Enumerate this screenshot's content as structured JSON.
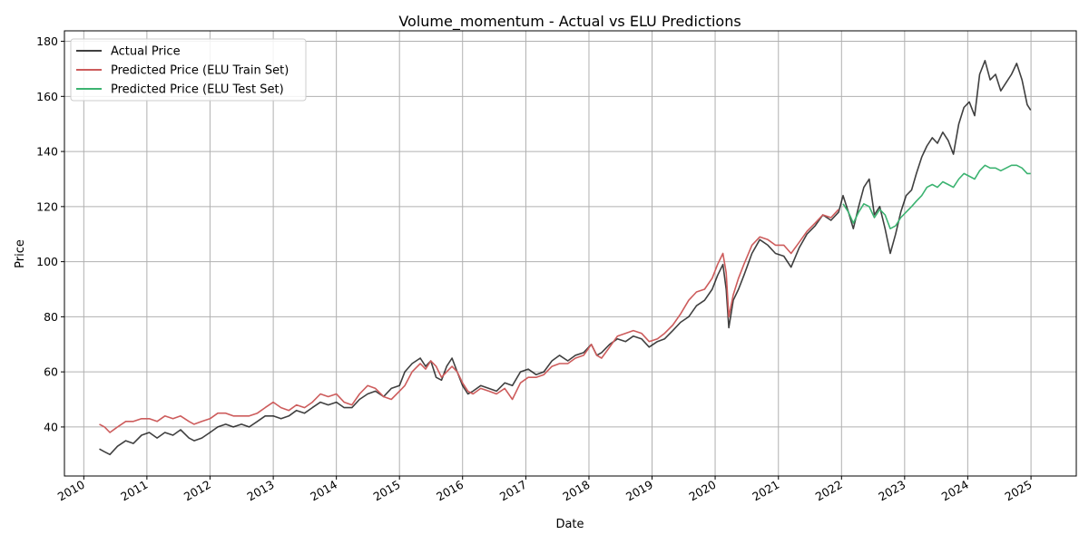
{
  "chart_data": {
    "type": "line",
    "title": "Volume_momentum - Actual vs ELU Predictions",
    "xlabel": "Date",
    "ylabel": "Price",
    "xlim": [
      "2009-09-11",
      "2025-09-20"
    ],
    "ylim": [
      22.2,
      183.8
    ],
    "grid": true,
    "legend_position": "top-left",
    "x_ticks": [
      "2010",
      "2011",
      "2012",
      "2013",
      "2014",
      "2015",
      "2016",
      "2017",
      "2018",
      "2019",
      "2020",
      "2021",
      "2022",
      "2023",
      "2024",
      "2025"
    ],
    "y_ticks": [
      40,
      60,
      80,
      100,
      120,
      140,
      160,
      180
    ],
    "series": [
      {
        "name": "Actual Price",
        "color": "#000000",
        "opacity": 0.75,
        "points": [
          [
            "2010-04-01",
            32
          ],
          [
            "2010-05-01",
            31
          ],
          [
            "2010-06-01",
            30
          ],
          [
            "2010-07-15",
            33
          ],
          [
            "2010-09-01",
            35
          ],
          [
            "2010-10-15",
            34
          ],
          [
            "2010-12-01",
            37
          ],
          [
            "2011-01-15",
            38
          ],
          [
            "2011-03-01",
            36
          ],
          [
            "2011-04-15",
            38
          ],
          [
            "2011-06-01",
            37
          ],
          [
            "2011-07-15",
            39
          ],
          [
            "2011-09-01",
            36
          ],
          [
            "2011-10-01",
            35
          ],
          [
            "2011-11-15",
            36
          ],
          [
            "2012-01-01",
            38
          ],
          [
            "2012-02-15",
            40
          ],
          [
            "2012-04-01",
            41
          ],
          [
            "2012-05-15",
            40
          ],
          [
            "2012-07-01",
            41
          ],
          [
            "2012-08-15",
            40
          ],
          [
            "2012-10-01",
            42
          ],
          [
            "2012-11-15",
            44
          ],
          [
            "2013-01-01",
            44
          ],
          [
            "2013-02-15",
            43
          ],
          [
            "2013-04-01",
            44
          ],
          [
            "2013-05-15",
            46
          ],
          [
            "2013-07-01",
            45
          ],
          [
            "2013-08-15",
            47
          ],
          [
            "2013-10-01",
            49
          ],
          [
            "2013-11-15",
            48
          ],
          [
            "2014-01-01",
            49
          ],
          [
            "2014-02-15",
            47
          ],
          [
            "2014-04-01",
            47
          ],
          [
            "2014-05-15",
            50
          ],
          [
            "2014-07-01",
            52
          ],
          [
            "2014-08-15",
            53
          ],
          [
            "2014-10-01",
            51
          ],
          [
            "2014-11-15",
            54
          ],
          [
            "2015-01-01",
            55
          ],
          [
            "2015-02-01",
            60
          ],
          [
            "2015-03-15",
            63
          ],
          [
            "2015-05-01",
            65
          ],
          [
            "2015-06-01",
            62
          ],
          [
            "2015-07-01",
            64
          ],
          [
            "2015-08-01",
            58
          ],
          [
            "2015-09-01",
            57
          ],
          [
            "2015-10-01",
            62
          ],
          [
            "2015-11-01",
            65
          ],
          [
            "2015-12-01",
            60
          ],
          [
            "2016-01-01",
            55
          ],
          [
            "2016-02-01",
            52
          ],
          [
            "2016-03-01",
            53
          ],
          [
            "2016-04-15",
            55
          ],
          [
            "2016-06-01",
            54
          ],
          [
            "2016-07-15",
            53
          ],
          [
            "2016-09-01",
            56
          ],
          [
            "2016-10-15",
            55
          ],
          [
            "2016-12-01",
            60
          ],
          [
            "2017-01-15",
            61
          ],
          [
            "2017-03-01",
            59
          ],
          [
            "2017-04-15",
            60
          ],
          [
            "2017-06-01",
            64
          ],
          [
            "2017-07-15",
            66
          ],
          [
            "2017-09-01",
            64
          ],
          [
            "2017-10-15",
            66
          ],
          [
            "2017-12-01",
            67
          ],
          [
            "2018-01-15",
            70
          ],
          [
            "2018-02-15",
            66
          ],
          [
            "2018-03-15",
            67
          ],
          [
            "2018-05-01",
            70
          ],
          [
            "2018-06-15",
            72
          ],
          [
            "2018-08-01",
            71
          ],
          [
            "2018-09-15",
            73
          ],
          [
            "2018-11-01",
            72
          ],
          [
            "2018-12-15",
            69
          ],
          [
            "2019-02-01",
            71
          ],
          [
            "2019-03-15",
            72
          ],
          [
            "2019-05-01",
            75
          ],
          [
            "2019-06-15",
            78
          ],
          [
            "2019-08-01",
            80
          ],
          [
            "2019-09-15",
            84
          ],
          [
            "2019-11-01",
            86
          ],
          [
            "2019-12-15",
            90
          ],
          [
            "2020-01-15",
            95
          ],
          [
            "2020-02-15",
            99
          ],
          [
            "2020-03-05",
            90
          ],
          [
            "2020-03-20",
            76
          ],
          [
            "2020-04-15",
            86
          ],
          [
            "2020-05-15",
            90
          ],
          [
            "2020-06-15",
            95
          ],
          [
            "2020-08-01",
            103
          ],
          [
            "2020-09-15",
            108
          ],
          [
            "2020-11-01",
            106
          ],
          [
            "2020-12-15",
            103
          ],
          [
            "2021-02-01",
            102
          ],
          [
            "2021-03-15",
            98
          ],
          [
            "2021-05-01",
            105
          ],
          [
            "2021-06-15",
            110
          ],
          [
            "2021-08-01",
            113
          ],
          [
            "2021-09-15",
            117
          ],
          [
            "2021-11-01",
            115
          ],
          [
            "2021-12-15",
            118
          ],
          [
            "2022-01-10",
            124
          ],
          [
            "2022-02-10",
            118
          ],
          [
            "2022-03-10",
            112
          ],
          [
            "2022-04-10",
            120
          ],
          [
            "2022-05-10",
            127
          ],
          [
            "2022-06-10",
            130
          ],
          [
            "2022-07-10",
            117
          ],
          [
            "2022-08-10",
            120
          ],
          [
            "2022-09-10",
            112
          ],
          [
            "2022-10-10",
            103
          ],
          [
            "2022-11-10",
            110
          ],
          [
            "2022-12-10",
            118
          ],
          [
            "2023-01-10",
            124
          ],
          [
            "2023-02-10",
            126
          ],
          [
            "2023-03-10",
            132
          ],
          [
            "2023-04-10",
            138
          ],
          [
            "2023-05-10",
            142
          ],
          [
            "2023-06-10",
            145
          ],
          [
            "2023-07-10",
            143
          ],
          [
            "2023-08-10",
            147
          ],
          [
            "2023-09-10",
            144
          ],
          [
            "2023-10-10",
            139
          ],
          [
            "2023-11-10",
            150
          ],
          [
            "2023-12-10",
            156
          ],
          [
            "2024-01-10",
            158
          ],
          [
            "2024-02-10",
            153
          ],
          [
            "2024-03-10",
            168
          ],
          [
            "2024-04-10",
            173
          ],
          [
            "2024-05-10",
            166
          ],
          [
            "2024-06-10",
            168
          ],
          [
            "2024-07-10",
            162
          ],
          [
            "2024-08-10",
            165
          ],
          [
            "2024-09-10",
            168
          ],
          [
            "2024-10-10",
            172
          ],
          [
            "2024-11-10",
            166
          ],
          [
            "2024-12-10",
            157
          ],
          [
            "2024-12-30",
            155
          ]
        ]
      },
      {
        "name": "Predicted Price (ELU Train Set)",
        "color": "#cd5c5c",
        "opacity": 1,
        "points": [
          [
            "2010-04-01",
            41
          ],
          [
            "2010-05-01",
            40
          ],
          [
            "2010-06-01",
            38
          ],
          [
            "2010-07-15",
            40
          ],
          [
            "2010-09-01",
            42
          ],
          [
            "2010-10-15",
            42
          ],
          [
            "2010-12-01",
            43
          ],
          [
            "2011-01-15",
            43
          ],
          [
            "2011-03-01",
            42
          ],
          [
            "2011-04-15",
            44
          ],
          [
            "2011-06-01",
            43
          ],
          [
            "2011-07-15",
            44
          ],
          [
            "2011-09-01",
            42
          ],
          [
            "2011-10-01",
            41
          ],
          [
            "2011-11-15",
            42
          ],
          [
            "2012-01-01",
            43
          ],
          [
            "2012-02-15",
            45
          ],
          [
            "2012-04-01",
            45
          ],
          [
            "2012-05-15",
            44
          ],
          [
            "2012-07-01",
            44
          ],
          [
            "2012-08-15",
            44
          ],
          [
            "2012-10-01",
            45
          ],
          [
            "2012-11-15",
            47
          ],
          [
            "2013-01-01",
            49
          ],
          [
            "2013-02-15",
            47
          ],
          [
            "2013-04-01",
            46
          ],
          [
            "2013-05-15",
            48
          ],
          [
            "2013-07-01",
            47
          ],
          [
            "2013-08-15",
            49
          ],
          [
            "2013-10-01",
            52
          ],
          [
            "2013-11-15",
            51
          ],
          [
            "2014-01-01",
            52
          ],
          [
            "2014-02-15",
            49
          ],
          [
            "2014-04-01",
            48
          ],
          [
            "2014-05-15",
            52
          ],
          [
            "2014-07-01",
            55
          ],
          [
            "2014-08-15",
            54
          ],
          [
            "2014-10-01",
            51
          ],
          [
            "2014-11-15",
            50
          ],
          [
            "2015-01-01",
            53
          ],
          [
            "2015-02-01",
            55
          ],
          [
            "2015-03-15",
            60
          ],
          [
            "2015-05-01",
            63
          ],
          [
            "2015-06-01",
            61
          ],
          [
            "2015-07-01",
            64
          ],
          [
            "2015-08-01",
            62
          ],
          [
            "2015-09-01",
            58
          ],
          [
            "2015-10-01",
            60
          ],
          [
            "2015-11-01",
            62
          ],
          [
            "2015-12-01",
            60
          ],
          [
            "2016-01-01",
            56
          ],
          [
            "2016-02-01",
            53
          ],
          [
            "2016-03-01",
            52
          ],
          [
            "2016-04-15",
            54
          ],
          [
            "2016-06-01",
            53
          ],
          [
            "2016-07-15",
            52
          ],
          [
            "2016-09-01",
            54
          ],
          [
            "2016-10-15",
            50
          ],
          [
            "2016-12-01",
            56
          ],
          [
            "2017-01-15",
            58
          ],
          [
            "2017-03-01",
            58
          ],
          [
            "2017-04-15",
            59
          ],
          [
            "2017-06-01",
            62
          ],
          [
            "2017-07-15",
            63
          ],
          [
            "2017-09-01",
            63
          ],
          [
            "2017-10-15",
            65
          ],
          [
            "2017-12-01",
            66
          ],
          [
            "2018-01-15",
            70
          ],
          [
            "2018-02-15",
            66
          ],
          [
            "2018-03-15",
            65
          ],
          [
            "2018-05-01",
            69
          ],
          [
            "2018-06-15",
            73
          ],
          [
            "2018-08-01",
            74
          ],
          [
            "2018-09-15",
            75
          ],
          [
            "2018-11-01",
            74
          ],
          [
            "2018-12-15",
            71
          ],
          [
            "2019-02-01",
            72
          ],
          [
            "2019-03-15",
            74
          ],
          [
            "2019-05-01",
            77
          ],
          [
            "2019-06-15",
            81
          ],
          [
            "2019-08-01",
            86
          ],
          [
            "2019-09-15",
            89
          ],
          [
            "2019-11-01",
            90
          ],
          [
            "2019-12-15",
            94
          ],
          [
            "2020-01-15",
            99
          ],
          [
            "2020-02-15",
            103
          ],
          [
            "2020-03-05",
            96
          ],
          [
            "2020-03-20",
            80
          ],
          [
            "2020-04-15",
            88
          ],
          [
            "2020-05-15",
            94
          ],
          [
            "2020-06-15",
            99
          ],
          [
            "2020-08-01",
            106
          ],
          [
            "2020-09-15",
            109
          ],
          [
            "2020-11-01",
            108
          ],
          [
            "2020-12-15",
            106
          ],
          [
            "2021-02-01",
            106
          ],
          [
            "2021-03-15",
            103
          ],
          [
            "2021-05-01",
            107
          ],
          [
            "2021-06-15",
            111
          ],
          [
            "2021-08-01",
            114
          ],
          [
            "2021-09-15",
            117
          ],
          [
            "2021-11-01",
            116
          ],
          [
            "2021-12-15",
            119
          ]
        ]
      },
      {
        "name": "Predicted Price (ELU Test Set)",
        "color": "#3cb371",
        "opacity": 1,
        "points": [
          [
            "2022-01-10",
            121
          ],
          [
            "2022-02-10",
            118
          ],
          [
            "2022-03-10",
            114
          ],
          [
            "2022-04-10",
            118
          ],
          [
            "2022-05-10",
            121
          ],
          [
            "2022-06-10",
            120
          ],
          [
            "2022-07-10",
            116
          ],
          [
            "2022-08-10",
            119
          ],
          [
            "2022-09-10",
            117
          ],
          [
            "2022-10-10",
            112
          ],
          [
            "2022-11-10",
            113
          ],
          [
            "2022-12-10",
            116
          ],
          [
            "2023-01-10",
            118
          ],
          [
            "2023-02-10",
            120
          ],
          [
            "2023-03-10",
            122
          ],
          [
            "2023-04-10",
            124
          ],
          [
            "2023-05-10",
            127
          ],
          [
            "2023-06-10",
            128
          ],
          [
            "2023-07-10",
            127
          ],
          [
            "2023-08-10",
            129
          ],
          [
            "2023-09-10",
            128
          ],
          [
            "2023-10-10",
            127
          ],
          [
            "2023-11-10",
            130
          ],
          [
            "2023-12-10",
            132
          ],
          [
            "2024-01-10",
            131
          ],
          [
            "2024-02-10",
            130
          ],
          [
            "2024-03-10",
            133
          ],
          [
            "2024-04-10",
            135
          ],
          [
            "2024-05-10",
            134
          ],
          [
            "2024-06-10",
            134
          ],
          [
            "2024-07-10",
            133
          ],
          [
            "2024-08-10",
            134
          ],
          [
            "2024-09-10",
            135
          ],
          [
            "2024-10-10",
            135
          ],
          [
            "2024-11-10",
            134
          ],
          [
            "2024-12-10",
            132
          ],
          [
            "2024-12-30",
            132
          ]
        ]
      }
    ]
  }
}
